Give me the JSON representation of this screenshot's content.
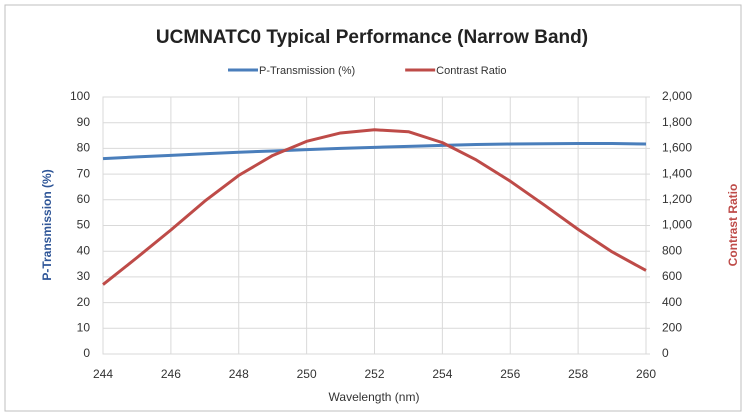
{
  "chart_data": {
    "type": "line",
    "title": "UCMNATC0 Typical Performance (Narrow Band)",
    "x_label": "Wavelength (nm)",
    "y_label": "P-Transmission (%)",
    "y2_label": "Contrast Ratio",
    "x": [
      244,
      245,
      246,
      247,
      248,
      249,
      250,
      251,
      252,
      253,
      254,
      255,
      256,
      257,
      258,
      259,
      260
    ],
    "series": [
      {
        "name": "P-Transmission (%)",
        "color": "#4a7ebb",
        "values": [
          76.0,
          76.7,
          77.3,
          77.9,
          78.5,
          79.0,
          79.5,
          80.0,
          80.4,
          80.8,
          81.2,
          81.5,
          81.7,
          81.8,
          81.9,
          81.9,
          81.7
        ]
      },
      {
        "name": "Contrast Ratio",
        "color": "#be4b48",
        "axis": "y2",
        "values": [
          540,
          750,
          965,
          1190,
          1390,
          1545,
          1655,
          1720,
          1745,
          1730,
          1645,
          1510,
          1345,
          1160,
          970,
          795,
          650
        ]
      }
    ],
    "xlim": [
      244,
      260
    ],
    "xticks": [
      244,
      246,
      248,
      250,
      252,
      254,
      256,
      258,
      260
    ],
    "ylim": [
      0,
      100
    ],
    "yticks": [
      0,
      10,
      20,
      30,
      40,
      50,
      60,
      70,
      80,
      90,
      100
    ],
    "y2lim": [
      0,
      2000
    ],
    "y2ticks": [
      0,
      200,
      400,
      600,
      800,
      {
        "value": 1000,
        "label": "1,000"
      },
      {
        "value": 1200,
        "label": "1,200"
      },
      {
        "value": 1400,
        "label": "1,400"
      },
      {
        "value": 1600,
        "label": "1,600"
      },
      {
        "value": 1800,
        "label": "1,800"
      },
      {
        "value": 2000,
        "label": "2,000"
      }
    ],
    "grid": true,
    "legend": "top"
  }
}
